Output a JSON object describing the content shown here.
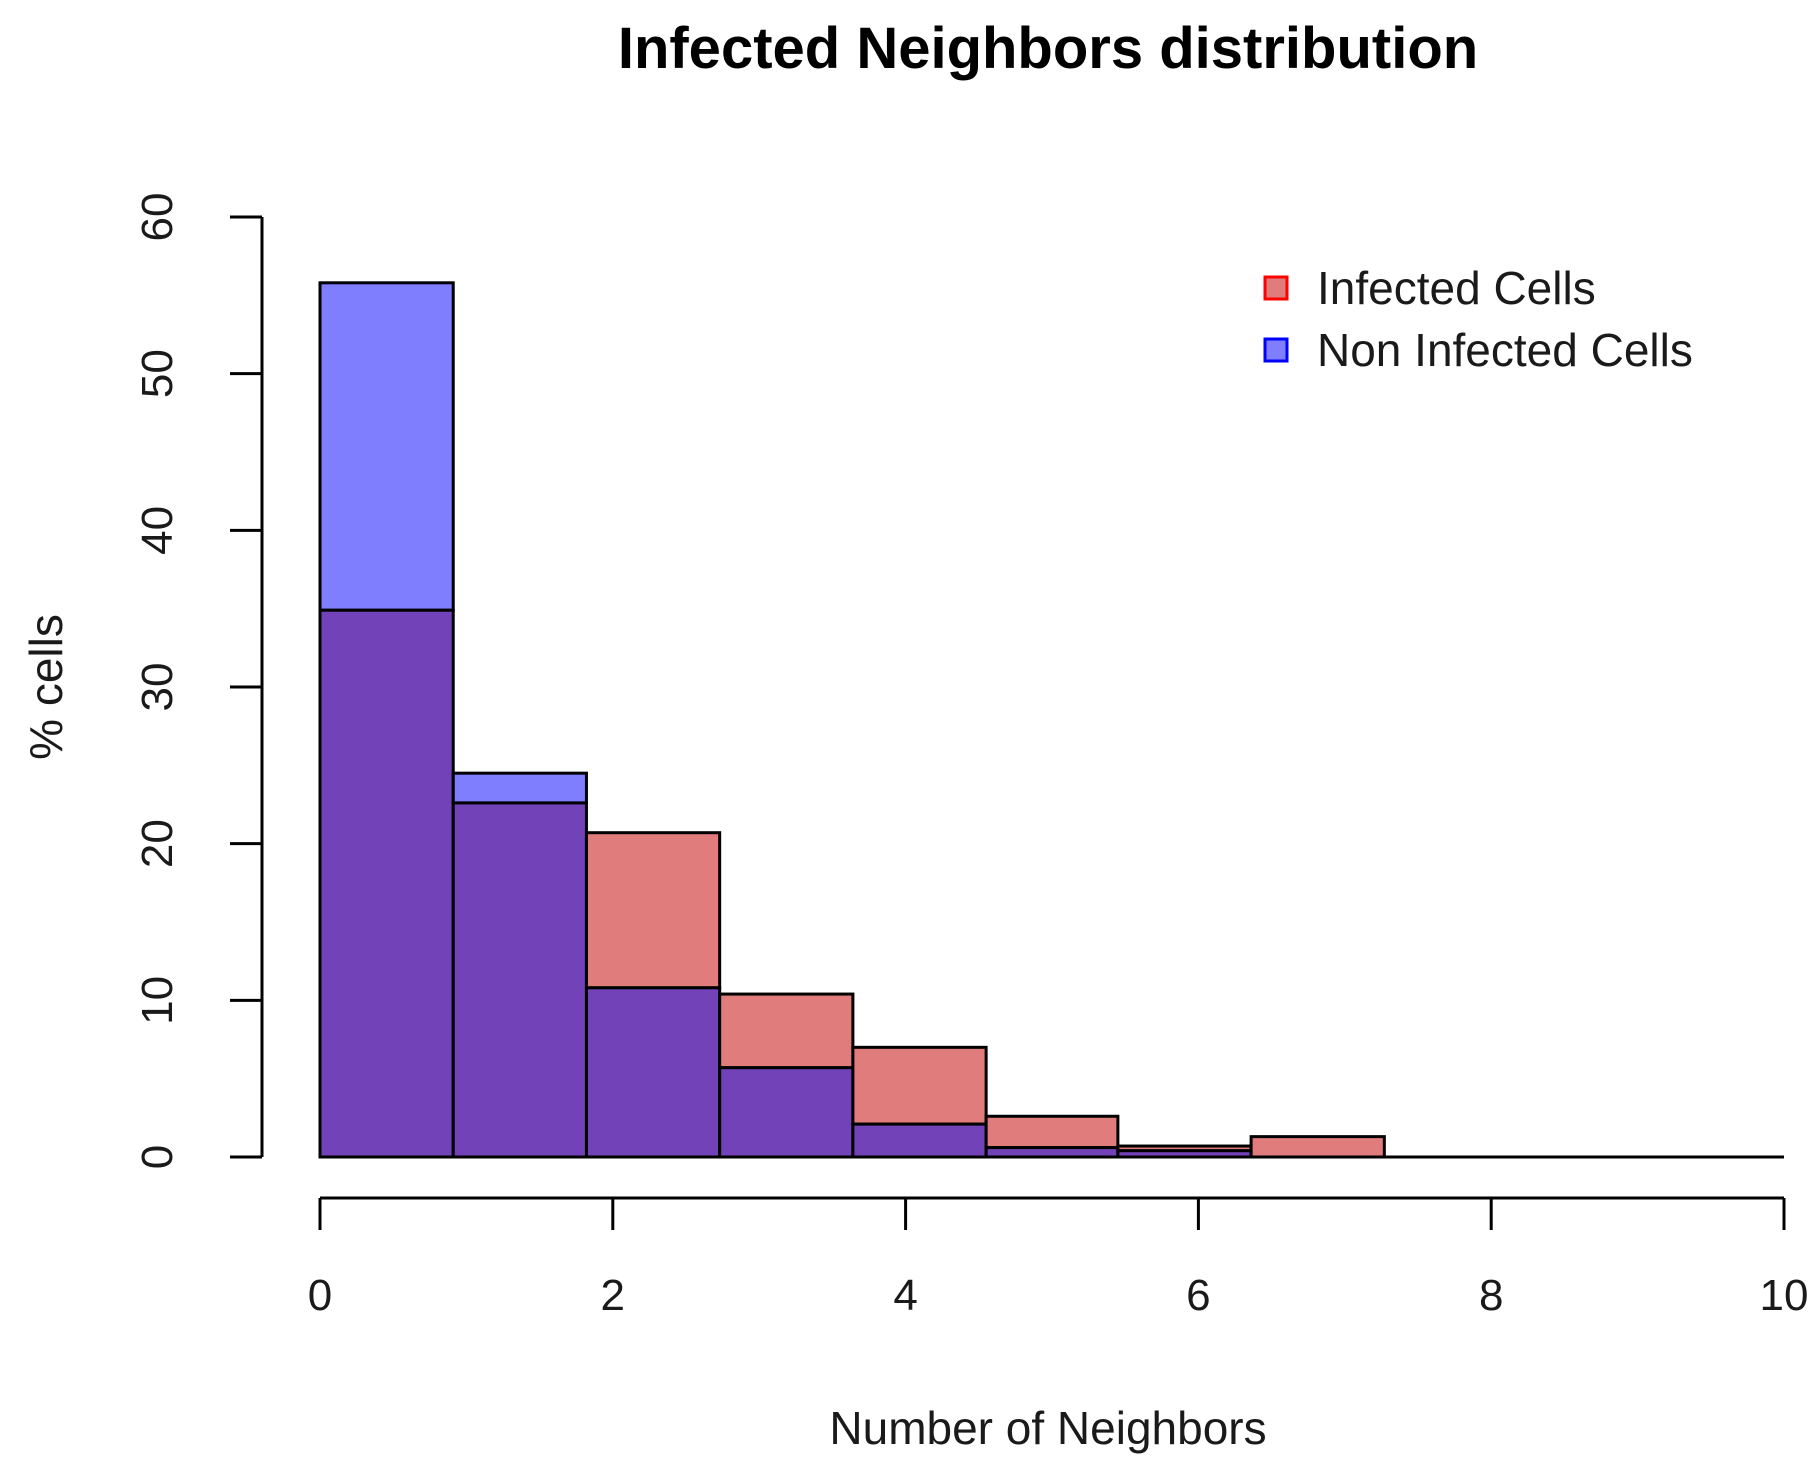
{
  "chart_data": {
    "type": "bar",
    "title": "Infected Neighbors distribution",
    "xlabel": "Number of Neighbors",
    "ylabel": "% cells",
    "xlim": [
      0,
      10
    ],
    "ylim": [
      0,
      60
    ],
    "x_ticks": [
      0,
      2,
      4,
      6,
      8,
      10
    ],
    "y_ticks": [
      0,
      10,
      20,
      30,
      40,
      50,
      60
    ],
    "bin_edges": [
      0,
      0.91,
      1.82,
      2.73,
      3.64,
      4.55,
      5.45,
      6.36,
      7.27
    ],
    "series": [
      {
        "name": "Infected Cells",
        "color": "#e07c7c",
        "values": [
          34.9,
          22.6,
          20.7,
          10.4,
          7.0,
          2.6,
          0.7,
          1.3
        ]
      },
      {
        "name": "Non Infected Cells",
        "color": "#7e7eff",
        "values": [
          55.8,
          24.5,
          10.8,
          5.7,
          2.1,
          0.6,
          0.4,
          0.0
        ]
      }
    ],
    "overlap_color": "#7243b8",
    "legend": {
      "position": "top-right",
      "entries": [
        {
          "label": "Infected Cells",
          "fill": "#e07c7c",
          "border": "#ff0000"
        },
        {
          "label": "Non Infected Cells",
          "fill": "#7e7eff",
          "border": "#0000ff"
        }
      ]
    },
    "grid": false
  }
}
